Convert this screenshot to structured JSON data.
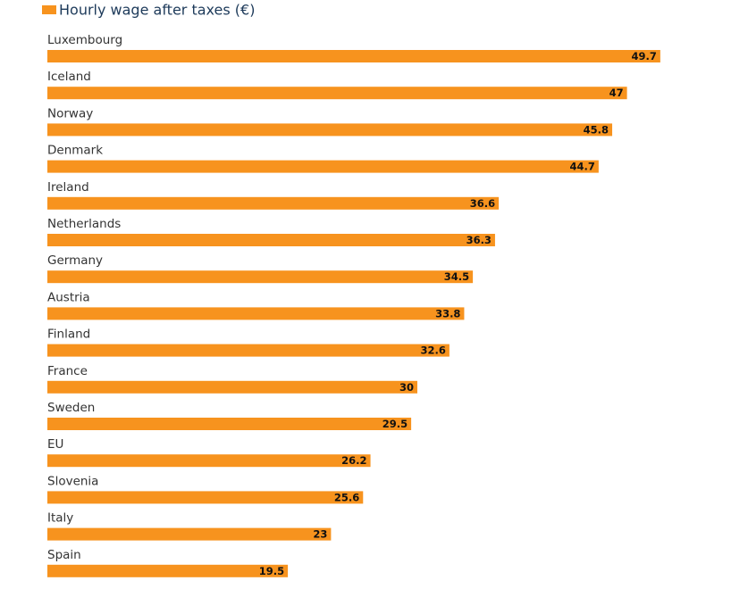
{
  "chart_data": {
    "type": "bar",
    "orientation": "horizontal",
    "series": [
      {
        "name": "Hourly wage after taxes (€)",
        "color": "#f7931e",
        "values": [
          49.7,
          47,
          45.8,
          44.7,
          36.6,
          36.3,
          34.5,
          33.8,
          32.6,
          30,
          29.5,
          26.2,
          25.6,
          23,
          19.5
        ]
      }
    ],
    "categories": [
      "Luxembourg",
      "Iceland",
      "Norway",
      "Denmark",
      "Ireland",
      "Netherlands",
      "Germany",
      "Austria",
      "Finland",
      "France",
      "Sweden",
      "EU",
      "Slovenia",
      "Italy",
      "Spain"
    ],
    "grid": false
  }
}
